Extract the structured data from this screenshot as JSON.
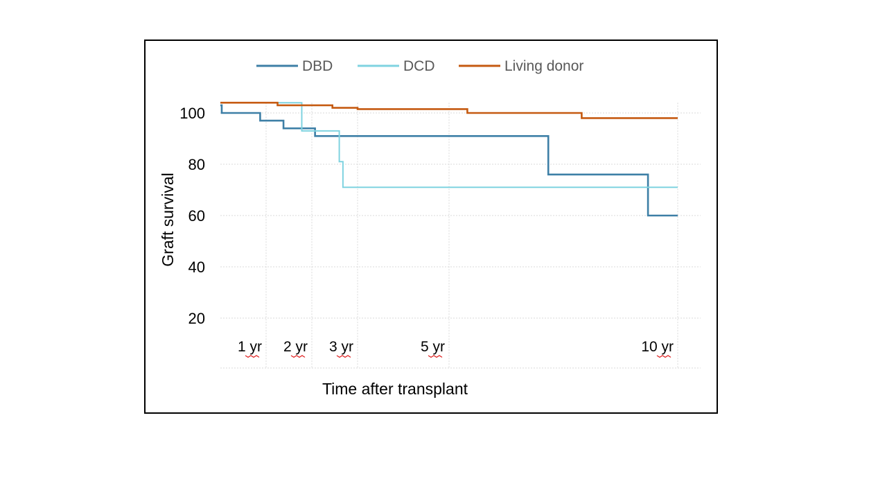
{
  "chart_data": {
    "type": "line",
    "step": true,
    "xlabel": "Time after transplant",
    "ylabel": "Graft survival",
    "ylim": [
      5,
      106
    ],
    "xlim": [
      0,
      10.5
    ],
    "yticks": [
      100,
      80,
      60,
      40,
      20
    ],
    "xticks": [
      {
        "x": 1,
        "label": "1 yr"
      },
      {
        "x": 2,
        "label": "2 yr"
      },
      {
        "x": 3,
        "label": "3 yr"
      },
      {
        "x": 5,
        "label": "5 yr"
      },
      {
        "x": 10,
        "label": "10 yr"
      }
    ],
    "grid": true,
    "legend_position": "top",
    "series": [
      {
        "name": "DBD",
        "color": "#3d7fa6",
        "x": [
          0,
          0.03,
          0.87,
          1.38,
          2.07,
          7.17,
          9.35,
          10
        ],
        "y": [
          103,
          100,
          97,
          94,
          91,
          76,
          60,
          60
        ]
      },
      {
        "name": "DCD",
        "color": "#7fd3e0",
        "x": [
          0,
          1.78,
          2.6,
          2.68,
          10
        ],
        "y": [
          104,
          93,
          81,
          71,
          71
        ]
      },
      {
        "name": "Living donor",
        "color": "#c55a11",
        "x": [
          0,
          1.25,
          2.45,
          3.0,
          5.4,
          7.9,
          10
        ],
        "y": [
          104,
          103,
          102,
          101.5,
          100,
          98,
          98
        ]
      }
    ]
  }
}
